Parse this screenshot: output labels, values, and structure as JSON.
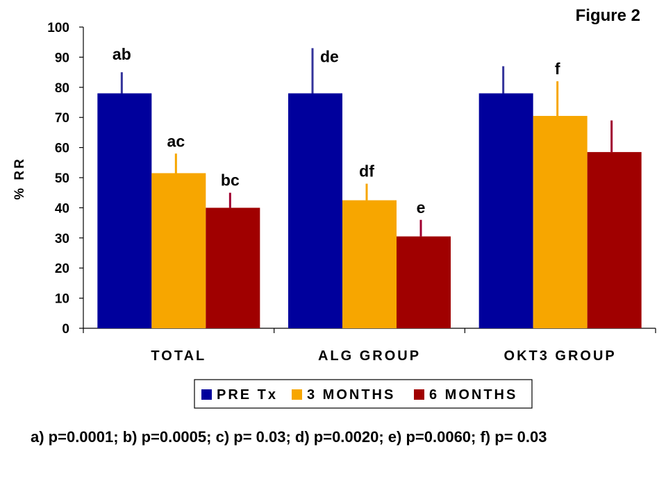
{
  "chart_data": {
    "type": "bar",
    "title": "Figure 2",
    "xlabel": "",
    "ylabel": "% RR",
    "ylim": [
      0,
      100
    ],
    "yticks": [
      0,
      10,
      20,
      30,
      40,
      50,
      60,
      70,
      80,
      90,
      100
    ],
    "grid": false,
    "legend_position": "bottom-center",
    "categories": [
      "TOTAL",
      "ALG GROUP",
      "OKT3 GROUP"
    ],
    "series": [
      {
        "name": "PRE Tx",
        "color": "#00009c",
        "values": [
          78,
          78,
          78
        ],
        "error_top": [
          85,
          93,
          87
        ],
        "error_color": "#33339a",
        "labels": [
          "ab",
          "de",
          ""
        ]
      },
      {
        "name": "3 MONTHS",
        "color": "#f7a600",
        "values": [
          51.5,
          42.5,
          70.5
        ],
        "error_top": [
          58,
          48,
          82
        ],
        "error_color": "#f7a600",
        "labels": [
          "ac",
          "df",
          "f"
        ]
      },
      {
        "name": "6 MONTHS",
        "color": "#a00000",
        "values": [
          40,
          30.5,
          58.5
        ],
        "error_top": [
          45,
          36,
          69
        ],
        "error_color": "#a00030",
        "labels": [
          "bc",
          "e",
          ""
        ]
      }
    ],
    "footnote": "a) p=0.0001; b) p=0.0005; c) p= 0.03; d) p=0.0020; e) p=0.0060;  f) p= 0.03"
  }
}
